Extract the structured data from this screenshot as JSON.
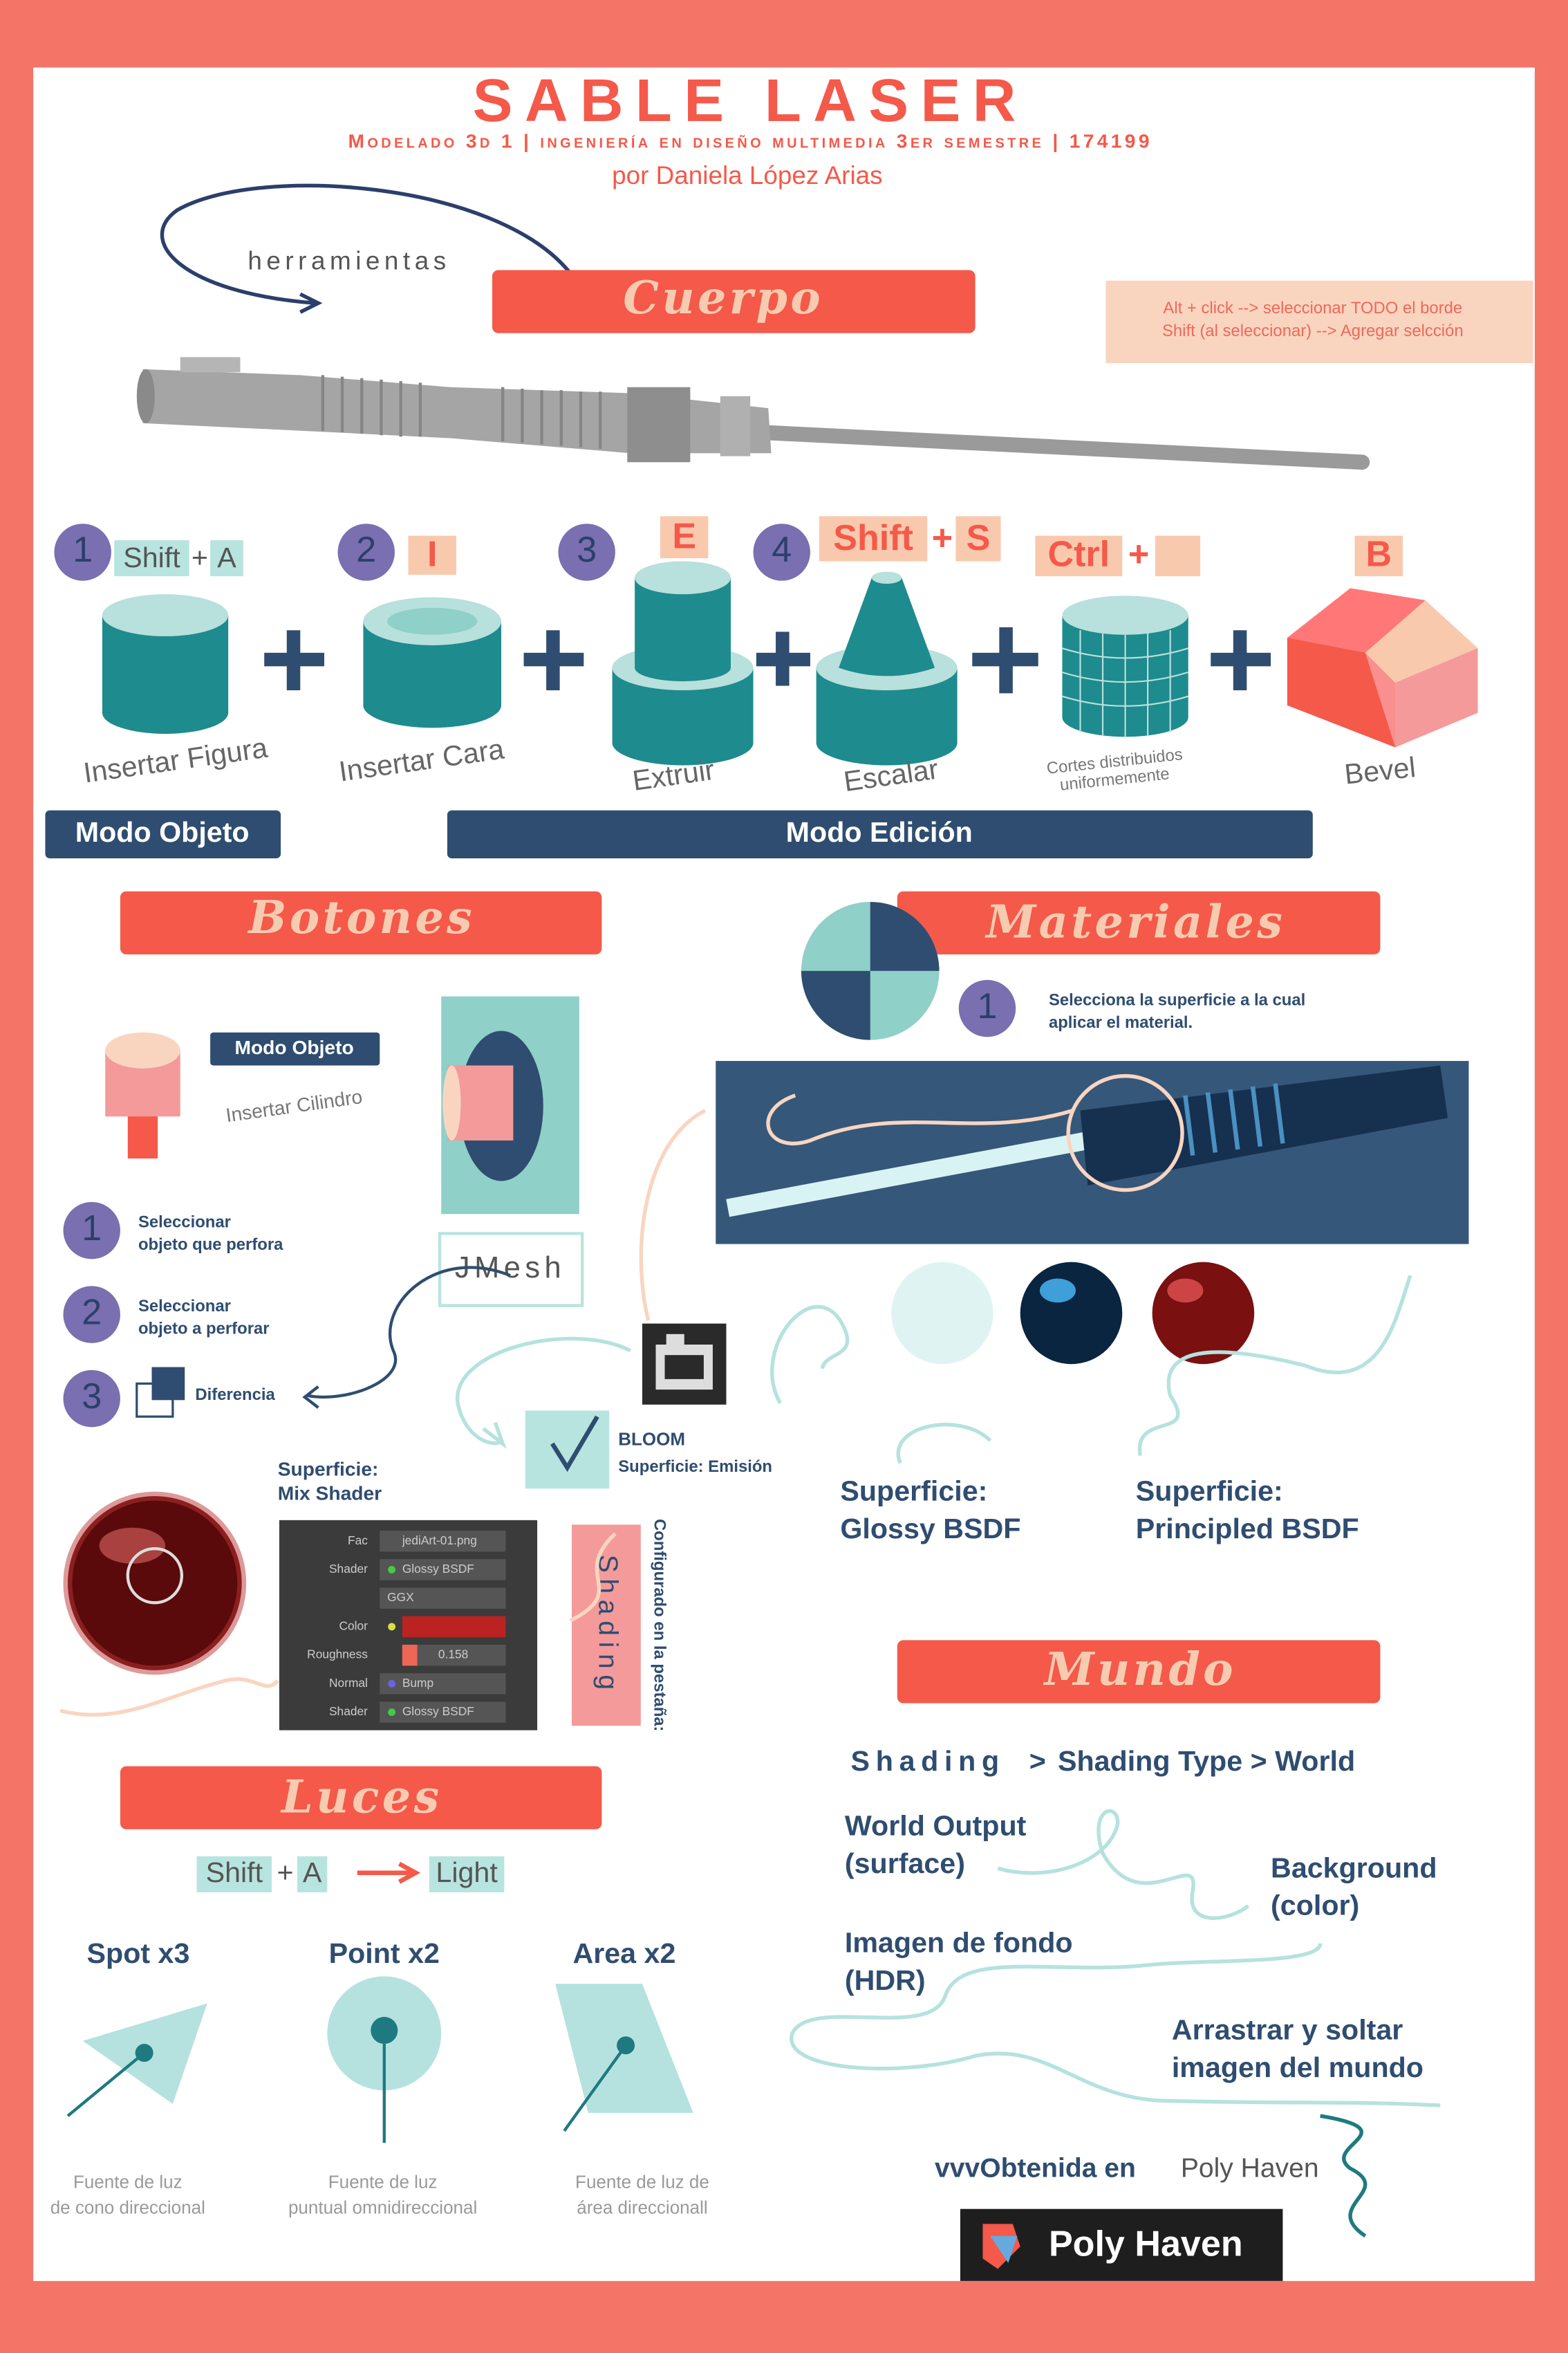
{
  "header": {
    "title": "SABLE LASER",
    "subtitle": "Modelado 3d 1 | ingeniería en diseño multimedia 3er semestre | 174199",
    "author": "por Daniela López Arias",
    "tools": "herramientas"
  },
  "cuerpo": {
    "heading": "Cuerpo",
    "tips": [
      "Alt + click --> seleccionar TODO el borde",
      "Shift (al seleccionar) --> Agregar selcción"
    ],
    "steps": [
      {
        "number": "1",
        "keys": [
          "Shift",
          "+",
          "A"
        ],
        "label": "Insertar Figura"
      },
      {
        "number": "2",
        "keys": [
          "I"
        ],
        "label": "Insertar Cara"
      },
      {
        "number": "3",
        "keys": [
          "E"
        ],
        "label": "Extruir"
      },
      {
        "number": "4",
        "keys": [
          "Shift",
          "+",
          "S"
        ],
        "label": "Escalar"
      },
      {
        "keys": [
          "Ctrl",
          "+"
        ],
        "label": [
          "Cortes distribuidos",
          "uniformemente"
        ]
      },
      {
        "keys": [
          "B"
        ],
        "label": "Bevel"
      }
    ],
    "modes": [
      "Modo Objeto",
      "Modo Edición"
    ]
  },
  "botones": {
    "heading": "Botones",
    "mode": "Modo Objeto",
    "insert": "Insertar Cilindro",
    "modifier": "JMesh",
    "steps": [
      {
        "number": "1",
        "text": [
          "Seleccionar",
          "objeto que perfora"
        ]
      },
      {
        "number": "2",
        "text": [
          "Seleccionar",
          "objeto a perforar"
        ]
      },
      {
        "number": "3",
        "text": [
          "Diferencia"
        ]
      }
    ],
    "surface": [
      "Superficie:",
      "Mix Shader"
    ],
    "panel": [
      {
        "label": "Fac",
        "value": "jediArt-01.png"
      },
      {
        "label": "Shader",
        "value": "Glossy BSDF"
      },
      {
        "value": "GGX"
      },
      {
        "label": "Color"
      },
      {
        "label": "Roughness",
        "value": "0.158"
      },
      {
        "label": "Normal",
        "value": "Bump"
      },
      {
        "label": "Shader",
        "value": "Glossy BSDF"
      }
    ],
    "tab": "Shading",
    "tab_note": "Configurado en la pestaña:",
    "bloom": "BLOOM",
    "bloom_surface": "Superficie: Emisión"
  },
  "materiales": {
    "heading": "Materiales",
    "step": "1",
    "hint": [
      "Selecciona la superficie a la cual",
      "aplicar el material."
    ],
    "surfaces": [
      [
        "Superficie:",
        "Glossy BSDF"
      ],
      [
        "Superficie:",
        "Principled BSDF"
      ]
    ]
  },
  "luces": {
    "heading": "Luces",
    "keys": [
      "Shift",
      "+",
      "A"
    ],
    "result": "Light",
    "lights": [
      {
        "name": "Spot x3",
        "description": [
          "Fuente de luz",
          "de cono direccional"
        ]
      },
      {
        "name": "Point x2",
        "description": [
          "Fuente de luz",
          "puntual omnidireccional"
        ]
      },
      {
        "name": "Area x2",
        "description": [
          "Fuente de luz de",
          "área direccionall"
        ]
      }
    ]
  },
  "mundo": {
    "heading": "Mundo",
    "path": [
      "Shading",
      ">",
      "Shading Type > World"
    ],
    "nodes": [
      [
        "World Output",
        "(surface)"
      ],
      [
        "Background",
        "(color)"
      ],
      [
        "Imagen de fondo",
        "(HDR)"
      ],
      [
        "Arrastrar y soltar",
        "imagen del mundo"
      ]
    ],
    "source": [
      "vvvObtenida en",
      "Poly Haven"
    ],
    "logo": "Poly Haven"
  }
}
